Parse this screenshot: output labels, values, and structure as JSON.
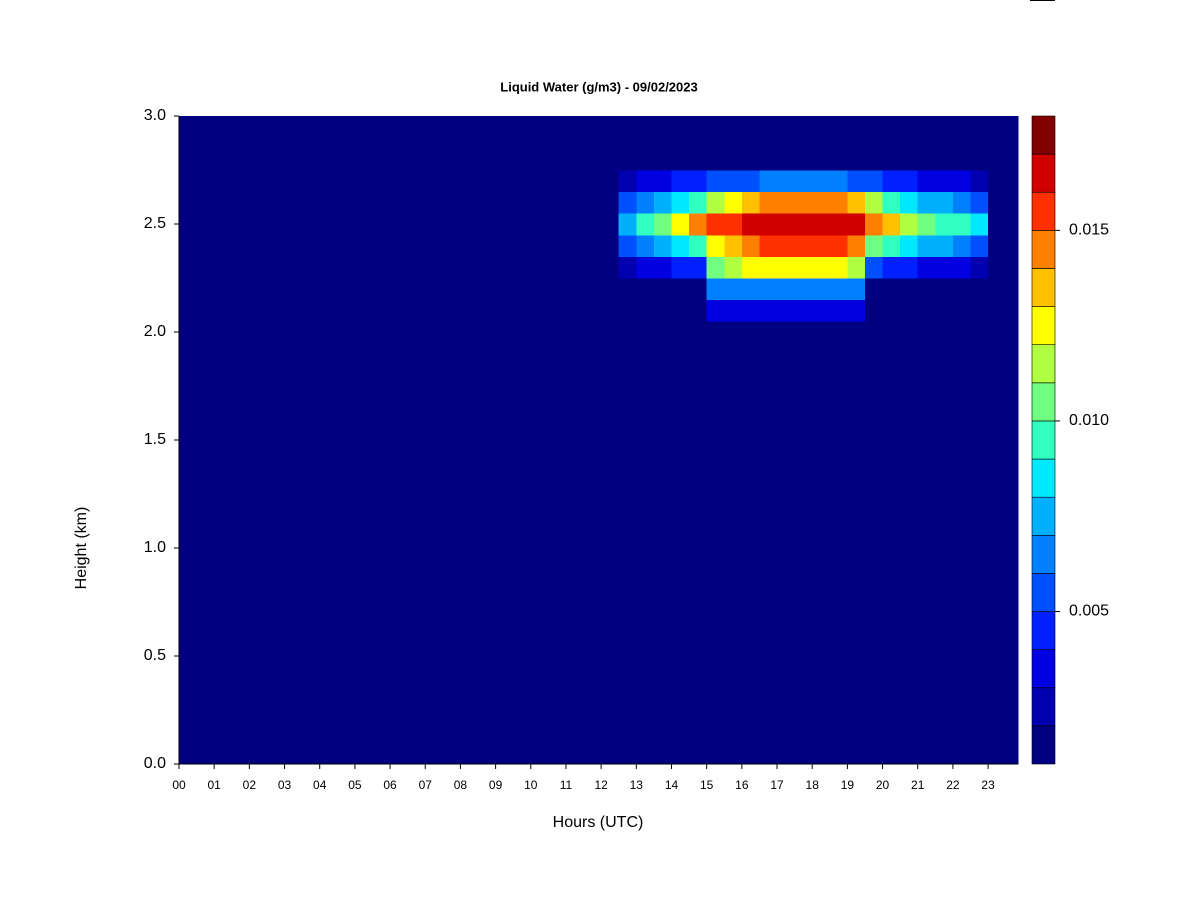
{
  "chart_data": {
    "type": "heatmap",
    "title": "Liquid Water (g/m3) - 09/02/2023",
    "x_label": "Hours (UTC)",
    "y_label": "Height (km)",
    "xlim": [
      0,
      23.85
    ],
    "ylim": [
      0,
      3
    ],
    "x_edges": [
      0,
      12.5,
      13,
      13.5,
      14,
      14.5,
      15,
      15.5,
      16,
      16.5,
      17,
      17.5,
      18,
      18.5,
      19,
      19.5,
      20,
      20.5,
      21,
      21.5,
      22,
      22.5,
      23,
      23.85
    ],
    "y_edges": [
      0,
      2.05,
      2.15,
      2.25,
      2.35,
      2.45,
      2.55,
      2.65,
      2.75,
      3.0
    ],
    "z": [
      [
        0,
        0,
        0,
        0,
        0,
        0,
        0,
        0,
        0,
        0,
        0,
        0,
        0,
        0,
        0,
        0,
        0,
        0,
        0,
        0,
        0,
        0,
        0
      ],
      [
        0,
        0,
        0,
        0,
        0,
        0,
        0.003,
        0.003,
        0.003,
        0.003,
        0.003,
        0.003,
        0.003,
        0.003,
        0.003,
        0,
        0,
        0,
        0,
        0,
        0,
        0,
        0
      ],
      [
        0,
        0,
        0,
        0,
        0,
        0,
        0.006,
        0.006,
        0.006,
        0.006,
        0.006,
        0.006,
        0.006,
        0.006,
        0.006,
        0,
        0,
        0,
        0,
        0,
        0,
        0,
        0
      ],
      [
        0,
        0.002,
        0.003,
        0.003,
        0.004,
        0.004,
        0.01,
        0.011,
        0.012,
        0.012,
        0.012,
        0.012,
        0.012,
        0.012,
        0.011,
        0.005,
        0.004,
        0.004,
        0.003,
        0.003,
        0.003,
        0.002,
        0
      ],
      [
        0,
        0.005,
        0.006,
        0.007,
        0.008,
        0.009,
        0.012,
        0.013,
        0.014,
        0.015,
        0.015,
        0.015,
        0.015,
        0.015,
        0.014,
        0.01,
        0.009,
        0.008,
        0.007,
        0.007,
        0.006,
        0.005,
        0
      ],
      [
        0,
        0.007,
        0.009,
        0.01,
        0.012,
        0.014,
        0.015,
        0.015,
        0.016,
        0.016,
        0.016,
        0.016,
        0.016,
        0.016,
        0.016,
        0.014,
        0.013,
        0.011,
        0.01,
        0.009,
        0.009,
        0.008,
        0
      ],
      [
        0,
        0.005,
        0.006,
        0.007,
        0.008,
        0.009,
        0.011,
        0.012,
        0.013,
        0.014,
        0.014,
        0.014,
        0.014,
        0.014,
        0.013,
        0.011,
        0.009,
        0.008,
        0.007,
        0.007,
        0.006,
        0.005,
        0
      ],
      [
        0,
        0.002,
        0.003,
        0.003,
        0.004,
        0.004,
        0.005,
        0.005,
        0.005,
        0.006,
        0.006,
        0.006,
        0.006,
        0.006,
        0.005,
        0.005,
        0.004,
        0.004,
        0.003,
        0.003,
        0.003,
        0.002,
        0
      ],
      [
        0,
        0,
        0,
        0,
        0,
        0,
        0,
        0,
        0,
        0,
        0,
        0,
        0,
        0,
        0,
        0,
        0,
        0,
        0,
        0,
        0,
        0,
        0
      ]
    ],
    "yticks": [
      {
        "value": 0,
        "label": "0.0"
      },
      {
        "value": 0.5,
        "label": "0.5"
      },
      {
        "value": 1,
        "label": "1.0"
      },
      {
        "value": 1.5,
        "label": "1.5"
      },
      {
        "value": 2,
        "label": "2.0"
      },
      {
        "value": 2.5,
        "label": "2.5"
      },
      {
        "value": 3,
        "label": "3.0"
      }
    ],
    "xticks": [
      {
        "value": 0,
        "label": "00"
      },
      {
        "value": 1,
        "label": "01"
      },
      {
        "value": 2,
        "label": "02"
      },
      {
        "value": 3,
        "label": "03"
      },
      {
        "value": 4,
        "label": "04"
      },
      {
        "value": 5,
        "label": "05"
      },
      {
        "value": 6,
        "label": "06"
      },
      {
        "value": 7,
        "label": "07"
      },
      {
        "value": 8,
        "label": "08"
      },
      {
        "value": 9,
        "label": "09"
      },
      10,
      11,
      12,
      13,
      14,
      15,
      16,
      17,
      18,
      19,
      20,
      21,
      22,
      23
    ],
    "colorbar": {
      "levels": [
        0.001,
        0.002,
        0.003,
        0.004,
        0.005,
        0.006,
        0.007,
        0.008,
        0.009,
        0.01,
        0.011,
        0.012,
        0.013,
        0.014,
        0.015,
        0.016,
        0.017,
        0.018
      ],
      "colors": [
        "#000080",
        "#0000B0",
        "#0000E0",
        "#0020FF",
        "#0050FF",
        "#0080FF",
        "#00B0FF",
        "#00E8FF",
        "#30FFC0",
        "#70FF80",
        "#B0FF40",
        "#FFFF00",
        "#FFC000",
        "#FF8000",
        "#FF3000",
        "#D00000",
        "#800000"
      ],
      "ticks": [
        {
          "value": 0.005,
          "label": "0.005"
        },
        {
          "value": 0.01,
          "label": "0.010"
        },
        {
          "value": 0.015,
          "label": "0.015"
        }
      ]
    }
  }
}
